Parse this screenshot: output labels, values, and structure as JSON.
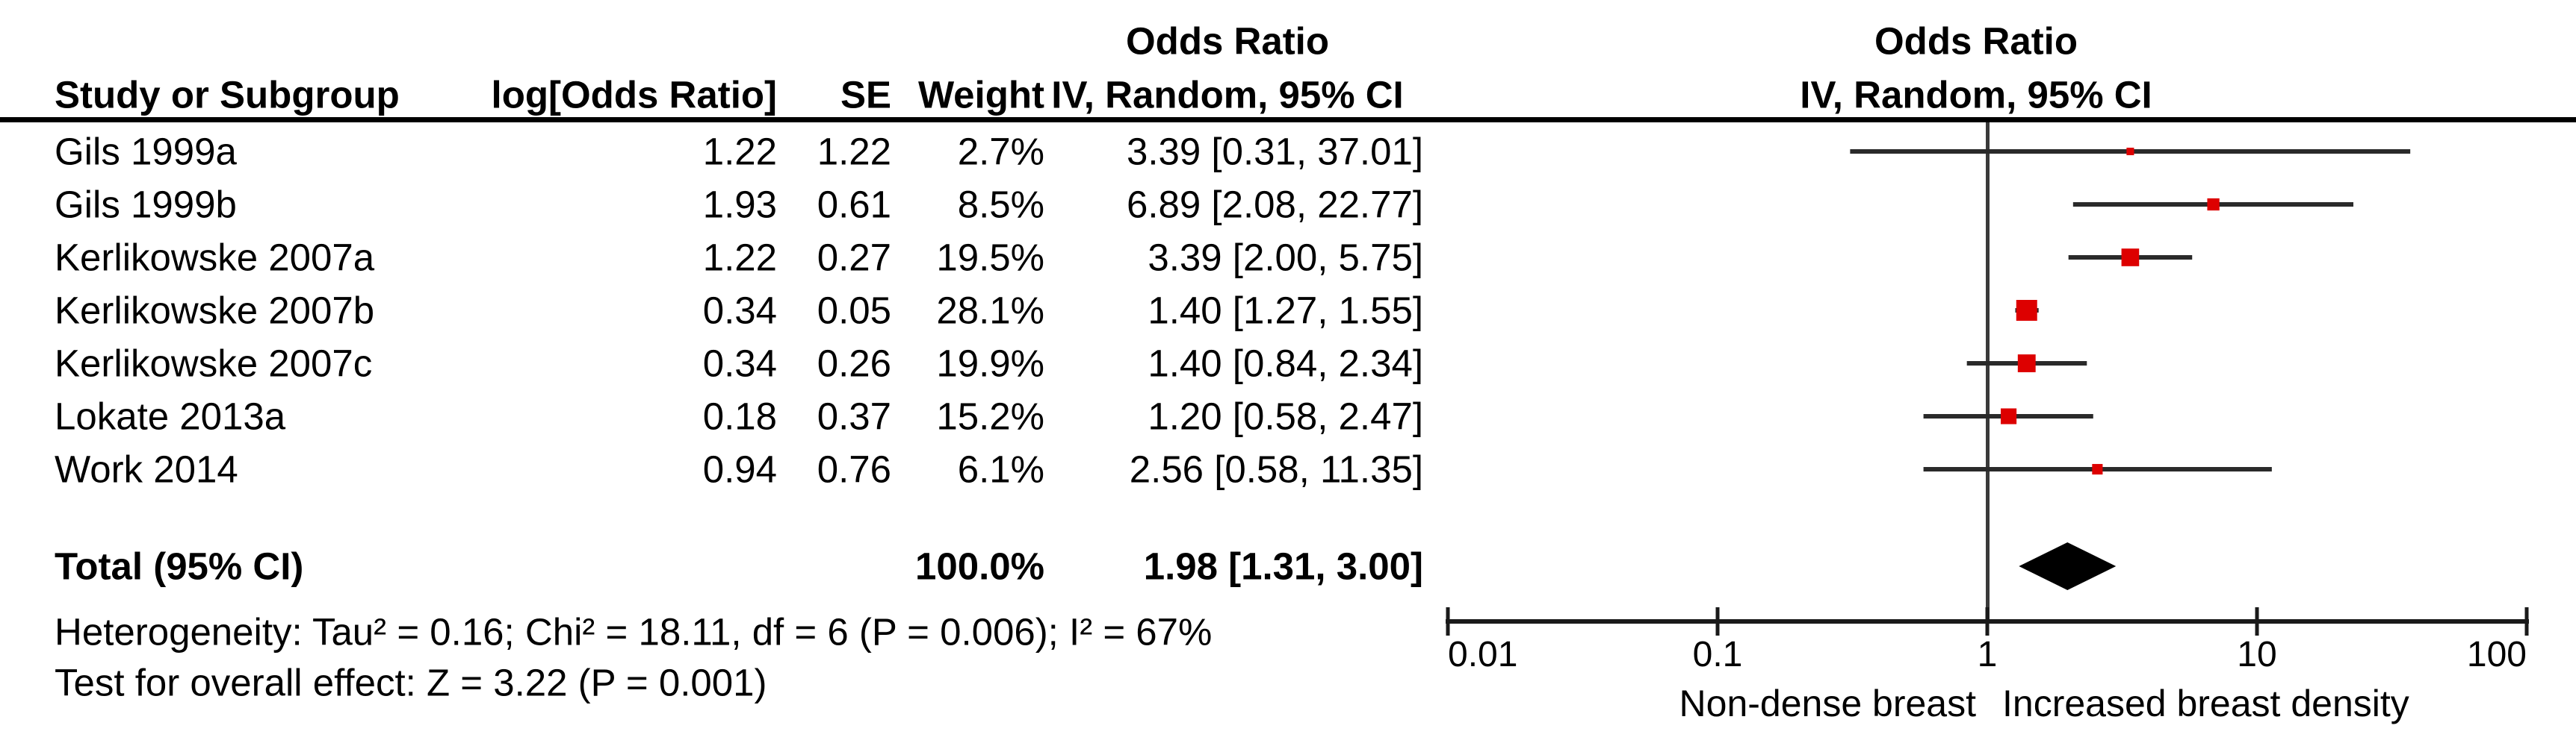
{
  "table": {
    "headers": {
      "study": "Study or Subgroup",
      "log_or": "log[Odds Ratio]",
      "se": "SE",
      "weight": "Weight",
      "or_group_title": "Odds Ratio",
      "or_method": "IV, Random, 95% CI",
      "plot_group_title": "Odds Ratio",
      "plot_method": "IV, Random, 95% CI"
    },
    "rows": [
      {
        "study": "Gils 1999a",
        "log_or": "1.22",
        "se": "1.22",
        "weight": "2.7%",
        "or_ci": "3.39 [0.31, 37.01]"
      },
      {
        "study": "Gils 1999b",
        "log_or": "1.93",
        "se": "0.61",
        "weight": "8.5%",
        "or_ci": "6.89 [2.08, 22.77]"
      },
      {
        "study": "Kerlikowske 2007a",
        "log_or": "1.22",
        "se": "0.27",
        "weight": "19.5%",
        "or_ci": "3.39 [2.00, 5.75]"
      },
      {
        "study": "Kerlikowske 2007b",
        "log_or": "0.34",
        "se": "0.05",
        "weight": "28.1%",
        "or_ci": "1.40 [1.27, 1.55]"
      },
      {
        "study": "Kerlikowske 2007c",
        "log_or": "0.34",
        "se": "0.26",
        "weight": "19.9%",
        "or_ci": "1.40 [0.84, 2.34]"
      },
      {
        "study": "Lokate 2013a",
        "log_or": "0.18",
        "se": "0.37",
        "weight": "15.2%",
        "or_ci": "1.20 [0.58, 2.47]"
      },
      {
        "study": "Work 2014",
        "log_or": "0.94",
        "se": "0.76",
        "weight": "6.1%",
        "or_ci": "2.56 [0.58, 11.35]"
      }
    ],
    "total": {
      "label": "Total (95% CI)",
      "weight": "100.0%",
      "or_ci": "1.98 [1.31, 3.00]"
    }
  },
  "footnotes": {
    "heterogeneity": "Heterogeneity: Tau² = 0.16; Chi² = 18.11, df = 6 (P = 0.006); I² = 67%",
    "overall_effect": "Test for overall effect: Z = 3.22 (P = 0.001)"
  },
  "chart_data": {
    "type": "forest",
    "x_scale": "log10",
    "x_range": [
      0.01,
      100
    ],
    "x_ticks": [
      0.01,
      0.1,
      1,
      10,
      100
    ],
    "x_tick_labels": [
      "0.01",
      "0.1",
      "1",
      "10",
      "100"
    ],
    "axis_label_left": "Non-dense breast",
    "axis_label_right": "Increased breast density",
    "no_effect_value": 1,
    "marker_color": "#dd0000",
    "line_color": "#2a2a2a",
    "axis_color": "#1a1a1a",
    "diamond_color": "#000000",
    "studies": [
      {
        "name": "Gils 1999a",
        "or": 3.39,
        "ci_low": 0.31,
        "ci_high": 37.01,
        "weight_pct": 2.7
      },
      {
        "name": "Gils 1999b",
        "or": 6.89,
        "ci_low": 2.08,
        "ci_high": 22.77,
        "weight_pct": 8.5
      },
      {
        "name": "Kerlikowske 2007a",
        "or": 3.39,
        "ci_low": 2.0,
        "ci_high": 5.75,
        "weight_pct": 19.5
      },
      {
        "name": "Kerlikowske 2007b",
        "or": 1.4,
        "ci_low": 1.27,
        "ci_high": 1.55,
        "weight_pct": 28.1
      },
      {
        "name": "Kerlikowske 2007c",
        "or": 1.4,
        "ci_low": 0.84,
        "ci_high": 2.34,
        "weight_pct": 19.9
      },
      {
        "name": "Lokate 2013a",
        "or": 1.2,
        "ci_low": 0.58,
        "ci_high": 2.47,
        "weight_pct": 15.2
      },
      {
        "name": "Work 2014",
        "or": 2.56,
        "ci_low": 0.58,
        "ci_high": 11.35,
        "weight_pct": 6.1
      }
    ],
    "total": {
      "or": 1.98,
      "ci_low": 1.31,
      "ci_high": 3.0,
      "weight_pct": 100.0
    }
  }
}
